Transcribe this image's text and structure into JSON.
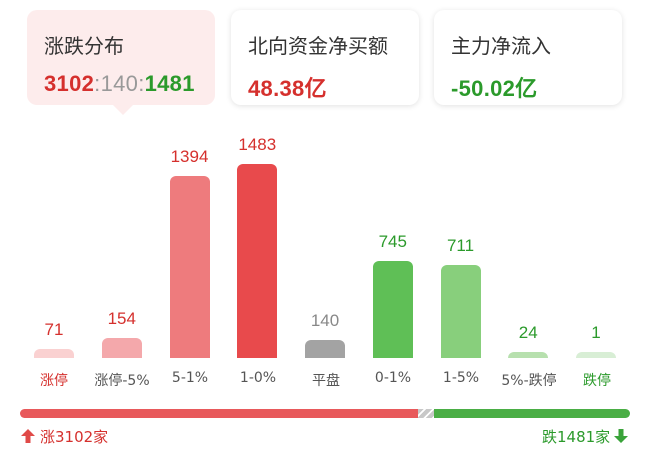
{
  "cards": [
    {
      "title": "涨跌分布",
      "up": "3102",
      "flat": "140",
      "down": "1481",
      "sep": ":"
    },
    {
      "title": "北向资金净买额",
      "value": "48.38亿",
      "color": "#d5302d"
    },
    {
      "title": "主力净流入",
      "value": "-50.02亿",
      "color": "#2b9a2b"
    }
  ],
  "chart_data": {
    "type": "bar",
    "categories": [
      "涨停",
      "涨停-5%",
      "5-1%",
      "1-0%",
      "平盘",
      "0-1%",
      "1-5%",
      "5%-跌停",
      "跌停"
    ],
    "values": [
      71,
      154,
      1394,
      1483,
      140,
      745,
      711,
      24,
      1
    ],
    "colors": [
      "#fad1d1",
      "#f4a8ab",
      "#ee7b7d",
      "#e84a4c",
      "#a3a3a3",
      "#5fbf56",
      "#88cf7c",
      "#b7e0ae",
      "#d8eed5"
    ],
    "value_colors": [
      "#d5302d",
      "#d5302d",
      "#d5302d",
      "#d5302d",
      "#888888",
      "#2b9a2b",
      "#2b9a2b",
      "#2b9a2b",
      "#2b9a2b"
    ]
  },
  "labels": {
    "zt": "涨停",
    "zt5": "涨停-5%",
    "r51": "5-1%",
    "r10": "1-0%",
    "pp": "平盘",
    "d01": "0-1%",
    "d15": "1-5%",
    "d5dt": "5%-跌停",
    "dt": "跌停"
  },
  "progress": {
    "up_count": 3102,
    "flat_count": 140,
    "down_count": 1481,
    "up_color": "#e8595b",
    "flat_color": "#c8c8c8",
    "down_color": "#4aae45"
  },
  "footer": {
    "up_text": "涨3102家",
    "down_text": "跌1481家"
  },
  "icons": {
    "up": "arrow-up-icon",
    "down": "arrow-down-icon"
  }
}
